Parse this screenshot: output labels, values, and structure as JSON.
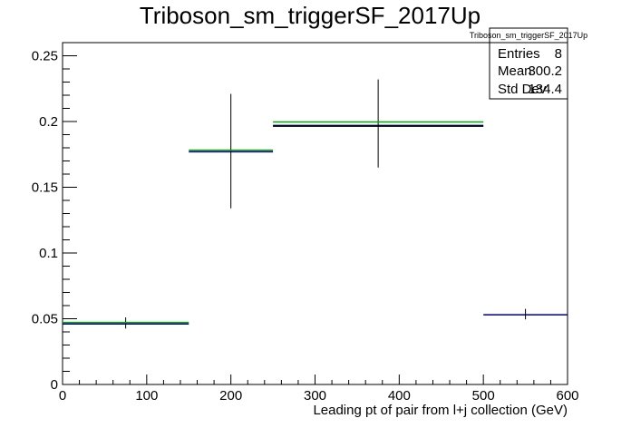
{
  "chart_data": {
    "type": "histogram",
    "title": "Triboson_sm_triggerSF_2017Up",
    "xlabel": "Leading pt of pair from l+j collection (GeV)",
    "ylabel": "",
    "xlim": [
      0,
      600
    ],
    "ylim": [
      0,
      0.26
    ],
    "x_ticks": [
      "0",
      "100",
      "200",
      "300",
      "400",
      "500",
      "600"
    ],
    "y_ticks": [
      "0",
      "0.05",
      "0.1",
      "0.15",
      "0.2",
      "0.25"
    ],
    "grid": false,
    "series": [
      {
        "color": "#000080",
        "bins": [
          {
            "x0": 0,
            "x1": 150,
            "value": 0.046,
            "err_lo": 0.0425,
            "err_hi": 0.051
          },
          {
            "x0": 150,
            "x1": 250,
            "value": 0.177,
            "err_lo": 0.134,
            "err_hi": 0.221
          },
          {
            "x0": 250,
            "x1": 500,
            "value": 0.197,
            "err_lo": 0.165,
            "err_hi": 0.232
          },
          {
            "x0": 500,
            "x1": 600,
            "value": 0.053,
            "err_lo": 0.0495,
            "err_hi": 0.0575
          }
        ]
      },
      {
        "color": "#00aa00",
        "bins": [
          {
            "x0": 0,
            "x1": 150,
            "value": 0.0465
          },
          {
            "x0": 150,
            "x1": 250,
            "value": 0.1775
          },
          {
            "x0": 250,
            "x1": 500,
            "value": 0.199
          }
        ]
      },
      {
        "color": "#000000",
        "bins": [
          {
            "x0": 250,
            "x1": 500,
            "value": 0.1965
          }
        ]
      }
    ],
    "stats_box": {
      "title": "Triboson_sm_triggerSF_2017Up",
      "rows": [
        {
          "label": "Entries",
          "value": "8"
        },
        {
          "label": "Mean",
          "value": "300.2"
        },
        {
          "label": "Std Dev",
          "value": "134.4"
        }
      ],
      "placement": "top-right"
    }
  }
}
